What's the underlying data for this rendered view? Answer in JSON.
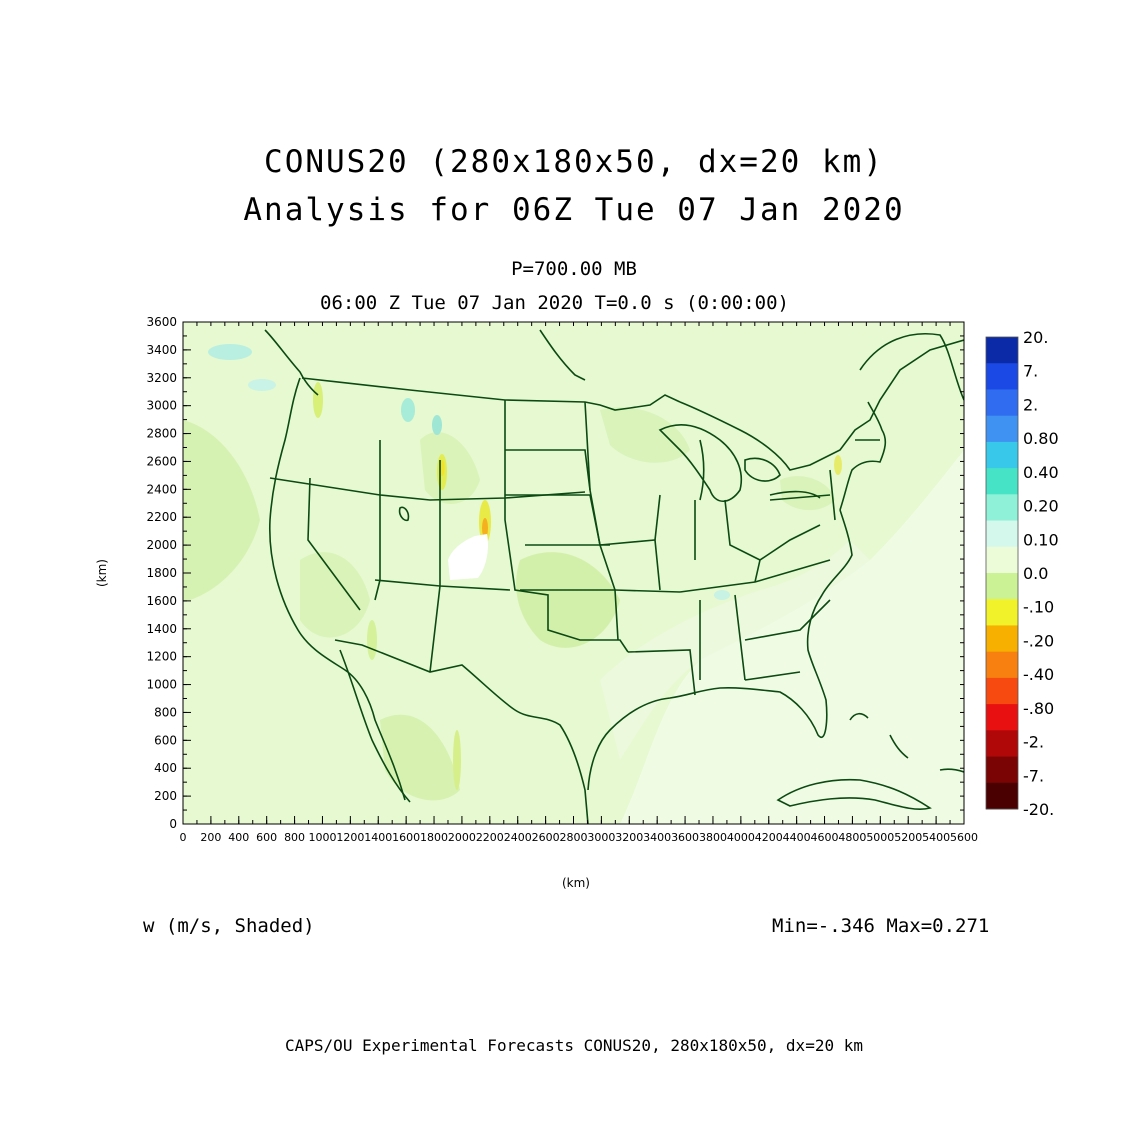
{
  "header": {
    "title_line1": "CONUS20 (280x180x50, dx=20 km)",
    "title_line2": "Analysis for 06Z Tue 07 Jan 2020",
    "level": "P=700.00 MB",
    "valid_time": "06:00 Z Tue 07 Jan 2020   T=0.0 s (0:00:00)"
  },
  "axes": {
    "x_label": "(km)",
    "y_label": "(km)",
    "x_ticks": [
      "0",
      "200",
      "400",
      "600",
      "800",
      "1000",
      "1200",
      "1400",
      "1600",
      "1800",
      "2000",
      "2200",
      "2400",
      "2600",
      "2800",
      "3000",
      "3200",
      "3400",
      "3600",
      "3800",
      "4000",
      "4200",
      "4400",
      "4600",
      "4800",
      "5000",
      "5200",
      "5400",
      "5600"
    ],
    "y_ticks": [
      "0",
      "200",
      "400",
      "600",
      "800",
      "1000",
      "1200",
      "1400",
      "1600",
      "1800",
      "2000",
      "2200",
      "2400",
      "2600",
      "2800",
      "3000",
      "3200",
      "3400",
      "3600"
    ],
    "x_range": [
      0,
      5600
    ],
    "y_range": [
      0,
      3600
    ]
  },
  "colorbar": {
    "labels": [
      "20.",
      "7.",
      "2.",
      "0.80",
      "0.40",
      "0.20",
      "0.10",
      "0.0",
      "-.10",
      "-.20",
      "-.40",
      "-.80",
      "-2.",
      "-7.",
      "-20."
    ],
    "colors": [
      "#0a2aa8",
      "#1a49e6",
      "#2f6cf0",
      "#3f92f2",
      "#38c8ea",
      "#47e3c6",
      "#8ff2d8",
      "#d4f8ec",
      "#ecfcd8",
      "#ccf296",
      "#f2f22a",
      "#f7b000",
      "#f78010",
      "#f74a10",
      "#e81010",
      "#b00808",
      "#7a0404",
      "#4a0000"
    ]
  },
  "footer": {
    "field_label": "w (m/s, Shaded)",
    "min_max": "Min=-.346  Max=0.271",
    "credit": "CAPS/OU Experimental Forecasts  CONUS20, 280x180x50, dx=20 km"
  }
}
